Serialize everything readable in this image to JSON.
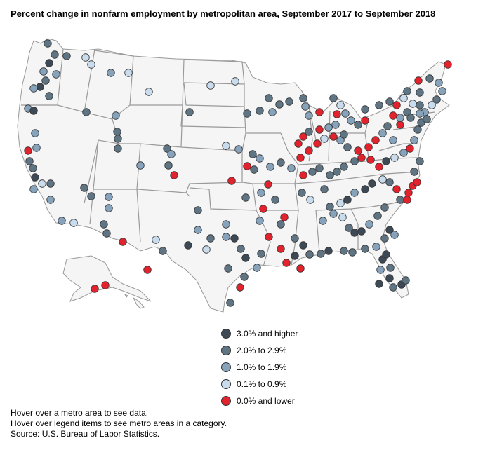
{
  "title": "Percent change in nonfarm employment by metropolitan area, September 2017 to September 2018",
  "colors": {
    "cat1": "#3d4a56",
    "cat2": "#5f7584",
    "cat3": "#86a3bb",
    "cat4": "#c8dced",
    "cat5": "#e2222c"
  },
  "legend": [
    {
      "label": "3.0% and higher",
      "color": "#3d4a56"
    },
    {
      "label": "2.0% to 2.9%",
      "color": "#5f7584"
    },
    {
      "label": "1.0% to 1.9%",
      "color": "#86a3bb"
    },
    {
      "label": "0.1% to 0.9%",
      "color": "#c8dced"
    },
    {
      "label": "0.0% and lower",
      "color": "#e2222c"
    }
  ],
  "notes": {
    "line1": "Hover over a metro area to see data.",
    "line2": "Hover over legend items to see metro areas in a category.",
    "source": "Source: U.S. Bureau of Labor Statistics."
  }
}
